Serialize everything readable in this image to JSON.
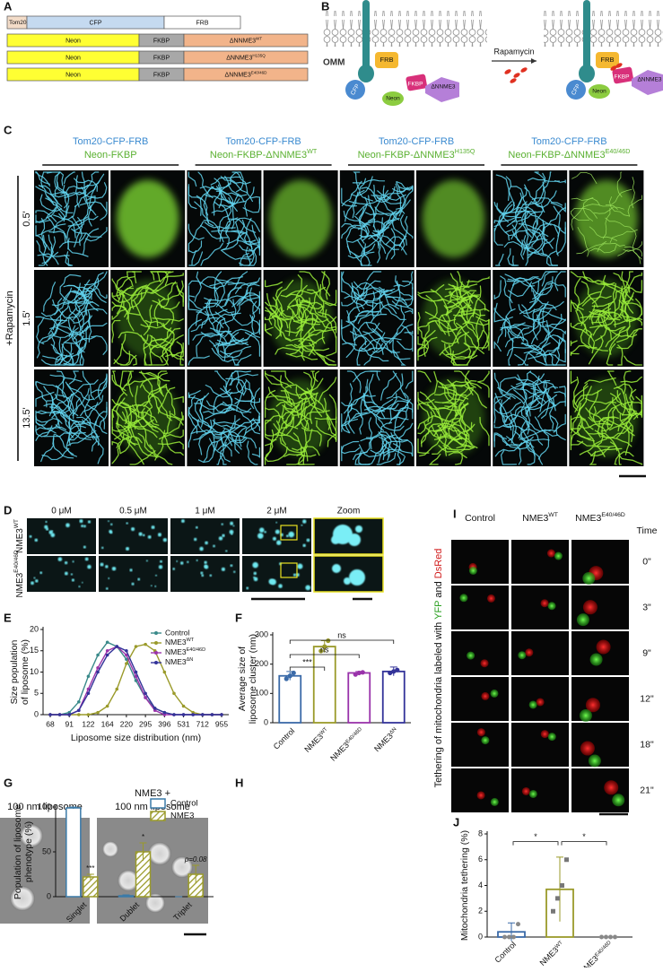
{
  "panel_labels": [
    "A",
    "B",
    "C",
    "D",
    "E",
    "F",
    "G",
    "H",
    "I",
    "J"
  ],
  "constructs": [
    [
      "Tom20",
      "CFP",
      "FRB"
    ],
    [
      "Neon",
      "FKBP",
      {
        "text": "ΔNNME3",
        "sup": "WT"
      }
    ],
    [
      "Neon",
      "FKBP",
      {
        "text": "ΔNNME3",
        "sup": "H135Q"
      }
    ],
    [
      "Neon",
      "FKBP",
      {
        "text": "ΔNNME3",
        "sup": "E40/46D"
      }
    ]
  ],
  "schematic": {
    "membrane_label": "OMM",
    "arrow_label": "Rapamycin",
    "before": {
      "frb": "FRB",
      "cfp": "CFP",
      "neon": "Neon",
      "fkbp": "FKBP",
      "nme3": "ΔNNME3"
    },
    "after": {
      "frb": "FRB",
      "cfp": "CFP",
      "neon": "Neon",
      "fkbp": "FKBP",
      "nme3": "ΔNNME3"
    }
  },
  "imaging": {
    "groups": [
      {
        "line1": "Tom20-CFP-FRB",
        "line2": "Neon-FKBP"
      },
      {
        "line1": "Tom20-CFP-FRB",
        "line2": {
          "text": "Neon-FKBP-ΔNNME3",
          "sup": "WT"
        }
      },
      {
        "line1": "Tom20-CFP-FRB",
        "line2": {
          "text": "Neon-FKBP-ΔNNME3",
          "sup": "H135Q"
        }
      },
      {
        "line1": "Tom20-CFP-FRB",
        "line2": {
          "text": "Neon-FKBP-ΔNNME3",
          "sup": "E40/46D"
        }
      }
    ],
    "condition": "+Rapamycin",
    "times": [
      "0.5'",
      "1.5'",
      "13.5'"
    ]
  },
  "dose": {
    "columns": [
      "0 μM",
      "0.5 μM",
      "1 μM",
      "2 μM",
      "Zoom"
    ],
    "rows": [
      {
        "text": "NME3",
        "sup": "WT"
      },
      {
        "text": "NME3",
        "sup": "E40/46D"
      }
    ]
  },
  "em": {
    "labels": [
      [
        "100 nm liposome"
      ],
      [
        "NME3 +",
        "100 nm liposome"
      ]
    ]
  },
  "timelapse": {
    "columns": [
      "Control",
      {
        "text": "NME3",
        "sup": "WT"
      },
      {
        "text": "NME3",
        "sup": "E40/46D"
      }
    ],
    "time_header": "Time",
    "times": [
      "0\"",
      "3\"",
      "9\"",
      "12\"",
      "18\"",
      "21\""
    ],
    "axis_label": [
      "Tethering of mitochondria labeled with ",
      "YFP",
      " and ",
      "DsRed"
    ]
  },
  "chart_data": [
    {
      "type": "line",
      "panel": "E",
      "ylabel": [
        "Size population",
        "of liposome (%)"
      ],
      "xlabel": "Liposome size distribution (nm)",
      "categories": [
        "68",
        null,
        "91",
        null,
        "122",
        null,
        "164",
        null,
        "220",
        null,
        "295",
        null,
        "396",
        null,
        "531",
        null,
        "712",
        null,
        "955"
      ],
      "ylim": [
        0,
        20
      ],
      "yticks": [
        0,
        5,
        10,
        15,
        20
      ],
      "series": [
        {
          "name": "Control",
          "color": "#3a8a8a",
          "values": [
            0,
            0,
            0.5,
            3,
            9,
            14,
            17,
            16,
            13,
            8,
            4,
            1.5,
            0.5,
            0,
            0,
            0,
            0,
            0,
            0
          ]
        },
        {
          "name": {
            "text": "NME3",
            "sup": "WT"
          },
          "color": "#9a9a2a",
          "values": [
            0,
            0,
            0,
            0,
            0,
            0.5,
            2,
            6,
            12,
            16,
            16.5,
            15,
            10,
            5,
            2,
            0.5,
            0,
            0,
            0
          ]
        },
        {
          "name": {
            "text": "NME3",
            "sup": "E40/46D"
          },
          "color": "#9933aa",
          "values": [
            0,
            0,
            0,
            1,
            6,
            11,
            15,
            16,
            14,
            9,
            4,
            1,
            0,
            0,
            0,
            0,
            0,
            0,
            0
          ]
        },
        {
          "name": {
            "text": "NME3",
            "sup": "ΔN"
          },
          "color": "#333399",
          "values": [
            0,
            0,
            0,
            1,
            5,
            10,
            14,
            16,
            15,
            10,
            5,
            1.5,
            0.5,
            0,
            0,
            0,
            0,
            0,
            0
          ]
        }
      ]
    },
    {
      "type": "bar",
      "panel": "F",
      "ylabel": [
        "Average size of",
        "liposome cluster (nm)"
      ],
      "categories": [
        "Control",
        {
          "text": "NME3",
          "sup": "WT"
        },
        {
          "text": "NME3",
          "sup": "E40/46D"
        },
        {
          "text": "NME3",
          "sup": "ΔN"
        }
      ],
      "values": [
        160,
        260,
        170,
        175
      ],
      "errors": [
        15,
        20,
        5,
        15
      ],
      "points": [
        [
          150,
          160,
          170
        ],
        [
          245,
          260,
          280
        ],
        [
          165,
          170,
          172
        ],
        [
          170,
          175,
          180
        ]
      ],
      "colors": [
        "#3a6aa8",
        "#9a9a2a",
        "#9933aa",
        "#333399"
      ],
      "ylim": [
        0,
        300
      ],
      "yticks": [
        0,
        100,
        200,
        300
      ],
      "annotations": [
        "***",
        "ns",
        "ns"
      ]
    },
    {
      "type": "grouped_bar",
      "panel": "H",
      "ylabel": [
        "Population of liposome",
        "phenotype (%)"
      ],
      "categories": [
        "Singlet",
        "Dublet",
        "Triplet"
      ],
      "ylim": [
        0,
        100
      ],
      "yticks": [
        0,
        50,
        100
      ],
      "series": [
        {
          "name": "Control",
          "color": "#3a7aa8",
          "values": [
            99,
            1,
            0
          ],
          "errors": [
            1,
            1,
            0
          ]
        },
        {
          "name": "NME3",
          "color": "#9a9a2a",
          "values": [
            22,
            50,
            25
          ],
          "errors": [
            3,
            10,
            10
          ]
        }
      ],
      "annotations": [
        "***",
        "*",
        "p=0.08"
      ]
    },
    {
      "type": "dot_bar",
      "panel": "J",
      "ylabel": "Mitochondria tethering (%)",
      "categories": [
        "Control",
        {
          "text": "NME3",
          "sup": "WT"
        },
        {
          "text": "NME3",
          "sup": "E40/46D"
        }
      ],
      "values": [
        0.4,
        3.7,
        0
      ],
      "errors": [
        0.7,
        2.5,
        0
      ],
      "points": [
        [
          0,
          0,
          0,
          1
        ],
        [
          2,
          3,
          4,
          6
        ],
        [
          0,
          0,
          0,
          0
        ]
      ],
      "colors": [
        "#3a6aa8",
        "#9a9a2a",
        "#333399"
      ],
      "ylim": [
        0,
        8
      ],
      "yticks": [
        0,
        2,
        4,
        6,
        8
      ],
      "annotations": [
        "*",
        "*"
      ]
    }
  ]
}
